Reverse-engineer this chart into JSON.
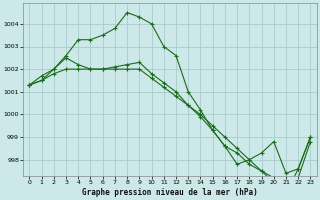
{
  "line1": {
    "x": [
      0,
      1,
      2,
      3,
      4,
      5,
      6,
      7,
      8,
      9,
      10,
      11,
      12,
      13,
      14,
      15,
      16,
      17,
      18,
      19,
      20,
      21,
      22,
      23
    ],
    "y": [
      1001.3,
      1001.7,
      1002.0,
      1002.6,
      1003.3,
      1003.3,
      1003.5,
      1003.8,
      1004.5,
      1004.3,
      1004.0,
      1003.0,
      1002.6,
      1001.0,
      1000.2,
      999.3,
      998.6,
      997.8,
      998.0,
      998.3,
      998.8,
      997.4,
      997.6,
      999.0
    ]
  },
  "line2": {
    "x": [
      0,
      1,
      2,
      3,
      4,
      5,
      6,
      7,
      8,
      9,
      10,
      11,
      12,
      13,
      14,
      15,
      16,
      17,
      18,
      19,
      20,
      21,
      22,
      23
    ],
    "y": [
      1001.3,
      1001.5,
      1002.0,
      1002.5,
      1002.2,
      1002.0,
      1002.0,
      1002.1,
      1002.2,
      1002.3,
      1001.8,
      1001.4,
      1001.0,
      1000.4,
      999.9,
      999.3,
      998.6,
      998.3,
      997.8,
      997.5,
      997.0,
      996.5,
      997.6,
      999.0
    ]
  },
  "line3": {
    "x": [
      0,
      1,
      2,
      3,
      4,
      5,
      6,
      7,
      8,
      9,
      10,
      11,
      12,
      13,
      14,
      15,
      16,
      17,
      18,
      19,
      20,
      21,
      22,
      23
    ],
    "y": [
      1001.3,
      1001.5,
      1001.8,
      1002.0,
      1002.0,
      1002.0,
      1002.0,
      1002.0,
      1002.0,
      1002.0,
      1001.6,
      1001.2,
      1000.8,
      1000.4,
      1000.0,
      999.5,
      999.0,
      998.5,
      998.0,
      997.5,
      997.2,
      997.0,
      997.2,
      998.8
    ]
  },
  "line_color": "#1a6b1a",
  "bg_color": "#cce8e8",
  "grid_color": "#aacccc",
  "xlabel": "Graphe pression niveau de la mer (hPa)",
  "ylim": [
    997.3,
    1004.9
  ],
  "yticks": [
    998,
    999,
    1000,
    1001,
    1002,
    1003,
    1004
  ],
  "xticks": [
    0,
    1,
    2,
    3,
    4,
    5,
    6,
    7,
    8,
    9,
    10,
    11,
    12,
    13,
    14,
    15,
    16,
    17,
    18,
    19,
    20,
    21,
    22,
    23
  ]
}
